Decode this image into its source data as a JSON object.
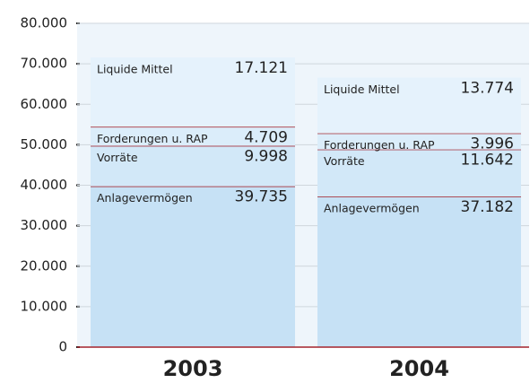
{
  "chart_data": {
    "type": "stacked_bar",
    "categories": [
      "2003",
      "2004"
    ],
    "series": [
      {
        "name": "Anlagevermögen",
        "color": "#c6e1f5",
        "values": [
          39735,
          37182
        ],
        "value_labels": [
          "39.735",
          "37.182"
        ]
      },
      {
        "name": "Vorräte",
        "color": "#d2e8f8",
        "values": [
          9998,
          11642
        ],
        "value_labels": [
          "9.998",
          "11.642"
        ]
      },
      {
        "name": "Forderungen u. RAP",
        "color": "#dbedfa",
        "values": [
          4709,
          3996
        ],
        "value_labels": [
          "4.709",
          "3.996"
        ]
      },
      {
        "name": "Liquide Mittel",
        "color": "#e5f2fc",
        "values": [
          17121,
          13774
        ],
        "value_labels": [
          "17.121",
          "13.774"
        ]
      }
    ],
    "ylim": [
      0,
      80000
    ],
    "yticks": [
      0,
      {
        "value": 10000,
        "label": "10.000"
      },
      {
        "value": 20000,
        "label": "20.000"
      },
      {
        "value": 30000,
        "label": "30.000"
      },
      {
        "value": 40000,
        "label": "40.000"
      },
      {
        "value": 50000,
        "label": "50.000"
      },
      {
        "value": 60000,
        "label": "60.000"
      },
      {
        "value": 70000,
        "label": "70.000"
      },
      {
        "value": 80000,
        "label": "80.000"
      }
    ],
    "grid": true
  }
}
